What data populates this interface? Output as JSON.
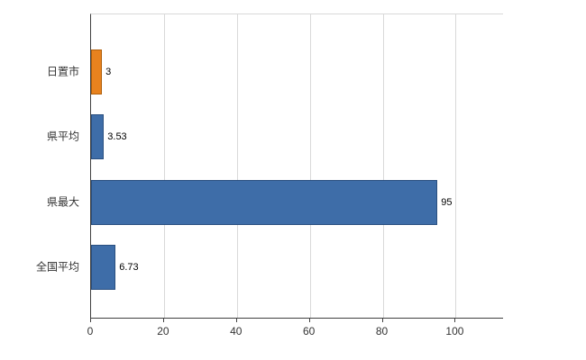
{
  "chart_data": {
    "type": "bar",
    "orientation": "horizontal",
    "title": "",
    "xlabel": "",
    "ylabel": "",
    "categories": [
      "日置市",
      "県平均",
      "県最大",
      "全国平均"
    ],
    "values": [
      3,
      3.53,
      95,
      6.73
    ],
    "value_labels": [
      "3",
      "3.53",
      "95",
      "6.73"
    ],
    "bar_colors": [
      "#e8821e",
      "#3e6da8",
      "#3e6da8",
      "#3e6da8"
    ],
    "bar_border_colors": [
      "#b05f0a",
      "#2a4f80",
      "#2a4f80",
      "#2a4f80"
    ],
    "xlim": [
      0,
      113
    ],
    "xticks": [
      0,
      20,
      40,
      60,
      80,
      100
    ],
    "grid": "vertical",
    "legend": "none",
    "background_color": "#ffffff",
    "gridline_color": "#d9d9d9",
    "axis_color": "#404040"
  }
}
